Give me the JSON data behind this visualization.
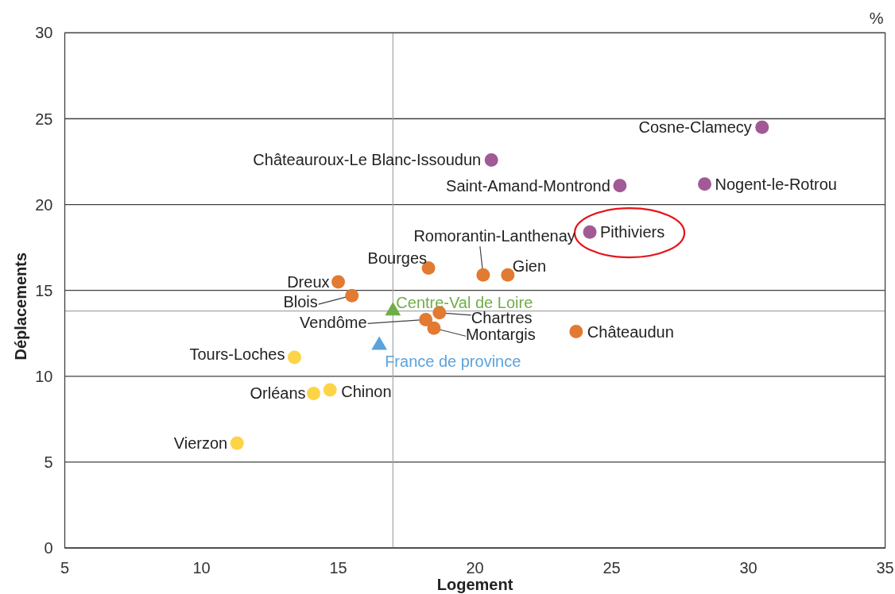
{
  "chart_data": {
    "type": "scatter",
    "xlabel": "Logement",
    "ylabel": "Déplacements",
    "xlim": [
      5,
      35
    ],
    "xticks": [
      5,
      10,
      15,
      20,
      25,
      30,
      35
    ],
    "ylim": [
      0,
      30
    ],
    "yticks": [
      0,
      5,
      10,
      15,
      20,
      25,
      30
    ],
    "grid": "y",
    "marker": "circle",
    "series": [
      {
        "color": "#a15a95",
        "x": [
          30.5,
          20.6,
          25.3,
          28.4,
          24.2
        ],
        "values": [
          24.5,
          22.6,
          21.1,
          21.2,
          18.4
        ]
      },
      {
        "color": "#e27a32",
        "x": [
          20.3,
          21.2,
          18.3,
          15.0,
          15.5,
          18.2,
          18.7,
          18.5,
          23.7
        ],
        "values": [
          15.9,
          15.9,
          16.3,
          15.5,
          14.7,
          13.3,
          13.7,
          12.8,
          12.6
        ]
      },
      {
        "color": "#fdd446",
        "x": [
          13.4,
          14.1,
          14.7,
          11.3
        ],
        "values": [
          11.1,
          9.0,
          9.2,
          6.1
        ]
      },
      {
        "name": "Centre-Val de Loire",
        "color": "#70ad47",
        "marker": "triangle",
        "x": [
          17.0
        ],
        "values": [
          13.8
        ]
      },
      {
        "name": "France de province",
        "color": "#5ba3dd",
        "marker": "triangle",
        "x": [
          16.5
        ],
        "values": [
          11.8
        ]
      }
    ],
    "ref_lines": [
      {
        "axis": "x",
        "value": 17.0,
        "color": "#a6a6a6"
      },
      {
        "axis": "y",
        "value": 13.8,
        "color": "#a6a6a6"
      }
    ],
    "annotations": [
      {
        "text": "Cosne-Clamecy",
        "x": 30.5,
        "y": 24.5
      },
      {
        "text": "Châteauroux-Le Blanc-Issoudun",
        "x": 20.6,
        "y": 22.6
      },
      {
        "text": "Saint-Amand-Montrond",
        "x": 25.3,
        "y": 21.1
      },
      {
        "text": "Nogent-le-Rotrou",
        "x": 28.4,
        "y": 21.2
      },
      {
        "text": "Pithiviers",
        "x": 24.2,
        "y": 18.4
      },
      {
        "text": "Romorantin-Lanthenay",
        "x": 20.3,
        "y": 15.9
      },
      {
        "text": "Gien",
        "x": 21.2,
        "y": 15.9
      },
      {
        "text": "Bourges",
        "x": 18.3,
        "y": 16.3
      },
      {
        "text": "Dreux",
        "x": 15.0,
        "y": 15.5
      },
      {
        "text": "Blois",
        "x": 15.5,
        "y": 14.7
      },
      {
        "text": "Vendôme",
        "x": 18.2,
        "y": 13.3
      },
      {
        "text": "Chartres",
        "x": 18.7,
        "y": 13.7
      },
      {
        "text": "Montargis",
        "x": 18.5,
        "y": 12.8
      },
      {
        "text": "Châteaudun",
        "x": 23.7,
        "y": 12.6
      },
      {
        "text": "Tours-Loches",
        "x": 13.4,
        "y": 11.1
      },
      {
        "text": "Orléans",
        "x": 14.1,
        "y": 9.0
      },
      {
        "text": "Chinon",
        "x": 14.7,
        "y": 9.2
      },
      {
        "text": "Vierzon",
        "x": 11.3,
        "y": 6.1
      },
      "%"
    ]
  }
}
